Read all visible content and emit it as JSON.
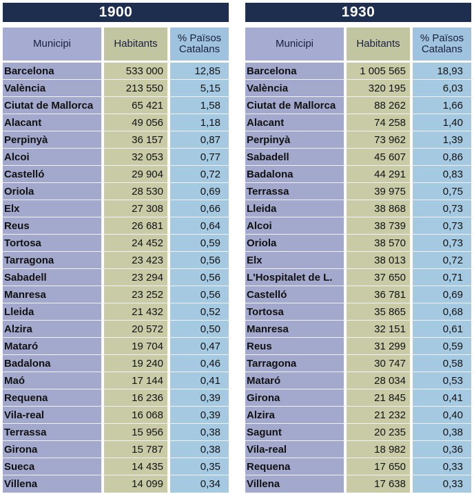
{
  "tables": [
    {
      "year": "1900",
      "headers": {
        "municipi": "Municipi",
        "habitants": "Habitants",
        "percent": "% Països Catalans"
      },
      "rows": [
        {
          "municipi": "Barcelona",
          "habitants": "533 000",
          "percent": "12,85"
        },
        {
          "municipi": "València",
          "habitants": "213 550",
          "percent": "5,15"
        },
        {
          "municipi": "Ciutat de Mallorca",
          "habitants": "65 421",
          "percent": "1,58"
        },
        {
          "municipi": "Alacant",
          "habitants": "49 056",
          "percent": "1,18"
        },
        {
          "municipi": "Perpinyà",
          "habitants": "36 157",
          "percent": "0,87"
        },
        {
          "municipi": "Alcoi",
          "habitants": "32 053",
          "percent": "0,77"
        },
        {
          "municipi": "Castelló",
          "habitants": "29 904",
          "percent": "0,72"
        },
        {
          "municipi": "Oriola",
          "habitants": "28 530",
          "percent": "0,69"
        },
        {
          "municipi": "Elx",
          "habitants": "27 308",
          "percent": "0,66"
        },
        {
          "municipi": "Reus",
          "habitants": "26 681",
          "percent": "0,64"
        },
        {
          "municipi": "Tortosa",
          "habitants": "24 452",
          "percent": "0,59"
        },
        {
          "municipi": "Tarragona",
          "habitants": "23 423",
          "percent": "0,56"
        },
        {
          "municipi": "Sabadell",
          "habitants": "23 294",
          "percent": "0,56"
        },
        {
          "municipi": "Manresa",
          "habitants": "23 252",
          "percent": "0,56"
        },
        {
          "municipi": "Lleida",
          "habitants": "21 432",
          "percent": "0,52"
        },
        {
          "municipi": "Alzira",
          "habitants": "20 572",
          "percent": "0,50"
        },
        {
          "municipi": "Mataró",
          "habitants": "19 704",
          "percent": "0,47"
        },
        {
          "municipi": "Badalona",
          "habitants": "19 240",
          "percent": "0,46"
        },
        {
          "municipi": "Maó",
          "habitants": "17 144",
          "percent": "0,41"
        },
        {
          "municipi": "Requena",
          "habitants": "16 236",
          "percent": "0,39"
        },
        {
          "municipi": "Vila-real",
          "habitants": "16 068",
          "percent": "0,39"
        },
        {
          "municipi": "Terrassa",
          "habitants": "15 956",
          "percent": "0,38"
        },
        {
          "municipi": "Girona",
          "habitants": "15 787",
          "percent": "0,38"
        },
        {
          "municipi": "Sueca",
          "habitants": "14 435",
          "percent": "0,35"
        },
        {
          "municipi": "Villena",
          "habitants": "14 099",
          "percent": "0,34"
        }
      ]
    },
    {
      "year": "1930",
      "headers": {
        "municipi": "Municipi",
        "habitants": "Habitants",
        "percent": "% Països Catalans"
      },
      "rows": [
        {
          "municipi": "Barcelona",
          "habitants": "1 005 565",
          "percent": "18,93"
        },
        {
          "municipi": "València",
          "habitants": "320 195",
          "percent": "6,03"
        },
        {
          "municipi": "Ciutat de Mallorca",
          "habitants": "88 262",
          "percent": "1,66"
        },
        {
          "municipi": "Alacant",
          "habitants": "74 258",
          "percent": "1,40"
        },
        {
          "municipi": "Perpinyà",
          "habitants": "73 962",
          "percent": "1,39"
        },
        {
          "municipi": "Sabadell",
          "habitants": "45 607",
          "percent": "0,86"
        },
        {
          "municipi": "Badalona",
          "habitants": "44 291",
          "percent": "0,83"
        },
        {
          "municipi": "Terrassa",
          "habitants": "39 975",
          "percent": "0,75"
        },
        {
          "municipi": "Lleida",
          "habitants": "38 868",
          "percent": "0,73"
        },
        {
          "municipi": "Alcoi",
          "habitants": "38 739",
          "percent": "0,73"
        },
        {
          "municipi": "Oriola",
          "habitants": "38 570",
          "percent": "0,73"
        },
        {
          "municipi": "Elx",
          "habitants": "38 013",
          "percent": "0,72"
        },
        {
          "municipi": "L'Hospitalet de L.",
          "habitants": "37 650",
          "percent": "0,71"
        },
        {
          "municipi": "Castelló",
          "habitants": "36 781",
          "percent": "0,69"
        },
        {
          "municipi": "Tortosa",
          "habitants": "35 865",
          "percent": "0,68"
        },
        {
          "municipi": "Manresa",
          "habitants": "32 151",
          "percent": "0,61"
        },
        {
          "municipi": "Reus",
          "habitants": "31 299",
          "percent": "0,59"
        },
        {
          "municipi": "Tarragona",
          "habitants": "30 747",
          "percent": "0,58"
        },
        {
          "municipi": "Mataró",
          "habitants": "28 034",
          "percent": "0,53"
        },
        {
          "municipi": "Girona",
          "habitants": "21 845",
          "percent": "0,41"
        },
        {
          "municipi": "Alzira",
          "habitants": "21 232",
          "percent": "0,40"
        },
        {
          "municipi": "Sagunt",
          "habitants": "20 235",
          "percent": "0,38"
        },
        {
          "municipi": "Vila-real",
          "habitants": "18 982",
          "percent": "0,36"
        },
        {
          "municipi": "Requena",
          "habitants": "17 650",
          "percent": "0,33"
        },
        {
          "municipi": "Villena",
          "habitants": "17 638",
          "percent": "0,33"
        }
      ]
    }
  ]
}
